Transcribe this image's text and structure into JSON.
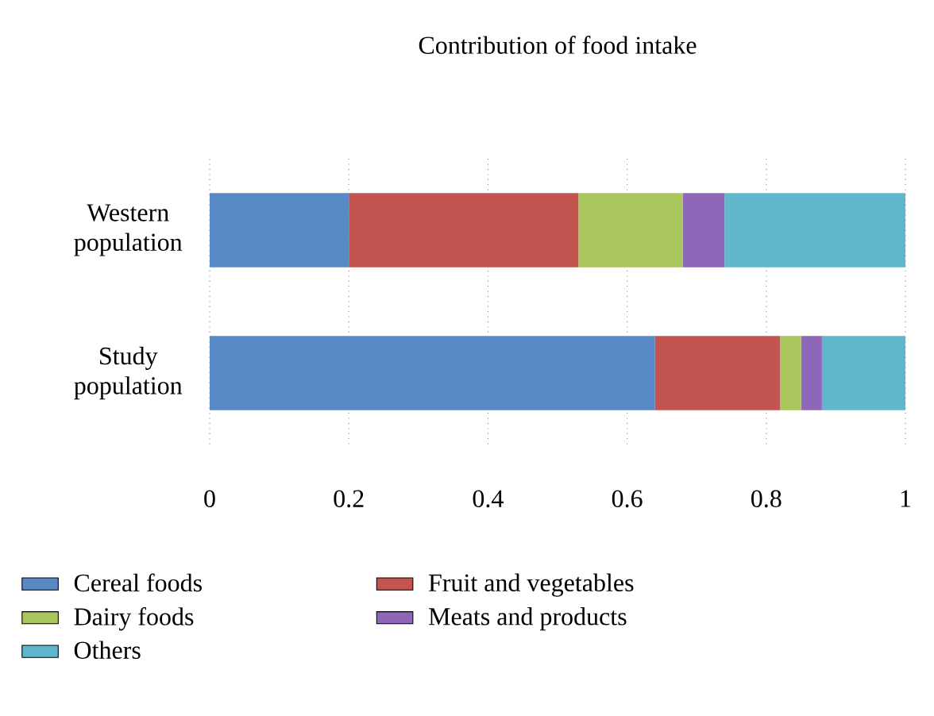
{
  "chart_data": {
    "type": "bar",
    "title": "Contribution of food intake",
    "orientation": "horizontal",
    "stacked": true,
    "categories": [
      "Western population",
      "Study population"
    ],
    "series": [
      {
        "name": "Cereal foods",
        "color": "#5a8ac6",
        "values": [
          0.2,
          0.64
        ]
      },
      {
        "name": "Fruit and vegetables",
        "color": "#c4544f",
        "values": [
          0.33,
          0.18
        ]
      },
      {
        "name": "Dairy foods",
        "color": "#a8c65c",
        "values": [
          0.15,
          0.03
        ]
      },
      {
        "name": "Meats and products",
        "color": "#8e67b8",
        "values": [
          0.06,
          0.03
        ]
      },
      {
        "name": "Others",
        "color": "#60b6cb",
        "values": [
          0.26,
          0.12
        ]
      }
    ],
    "xlim": [
      0,
      1
    ],
    "xticks": [
      0,
      0.2,
      0.4,
      0.6,
      0.8,
      1
    ],
    "grid": "x",
    "legend": "bottom"
  }
}
